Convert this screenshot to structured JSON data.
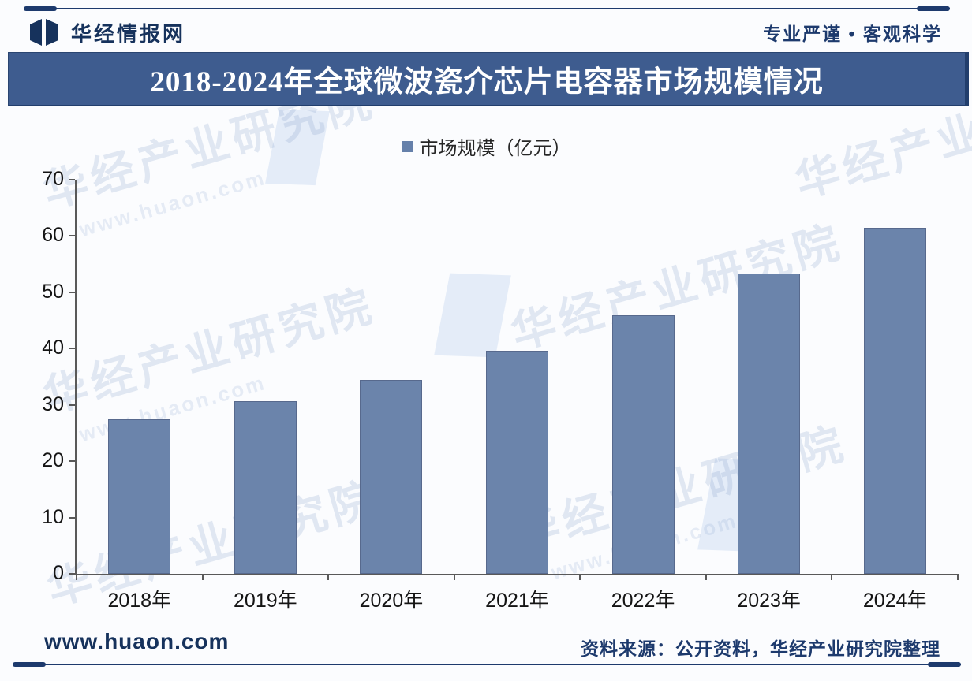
{
  "header": {
    "brand": "华经情报网",
    "slogan": "专业严谨 • 客观科学"
  },
  "title_bar": {
    "text": "2018-2024年全球微波瓷介芯片电容器市场规模情况",
    "bg": "#3e5c8f",
    "fg": "#ffffff"
  },
  "chart_data": {
    "type": "bar",
    "title": "2018-2024年全球微波瓷介芯片电容器市场规模情况",
    "legend": "市场规模（亿元）",
    "legend_position": "top-center",
    "categories": [
      "2018年",
      "2019年",
      "2020年",
      "2021年",
      "2022年",
      "2023年",
      "2024年"
    ],
    "values": [
      27.5,
      30.6,
      34.4,
      39.6,
      45.9,
      53.4,
      61.5
    ],
    "ylim": [
      0,
      70
    ],
    "yticks": [
      0,
      10,
      20,
      30,
      40,
      50,
      60,
      70
    ],
    "grid": false,
    "bar_color": "#6b84ab",
    "axis_color": "#595959"
  },
  "watermark": {
    "text": "华经产业研究院",
    "subtext": "www.huaon.com"
  },
  "footer": {
    "site": "www.huaon.com",
    "source": "资料来源：公开资料，华经产业研究院整理"
  }
}
